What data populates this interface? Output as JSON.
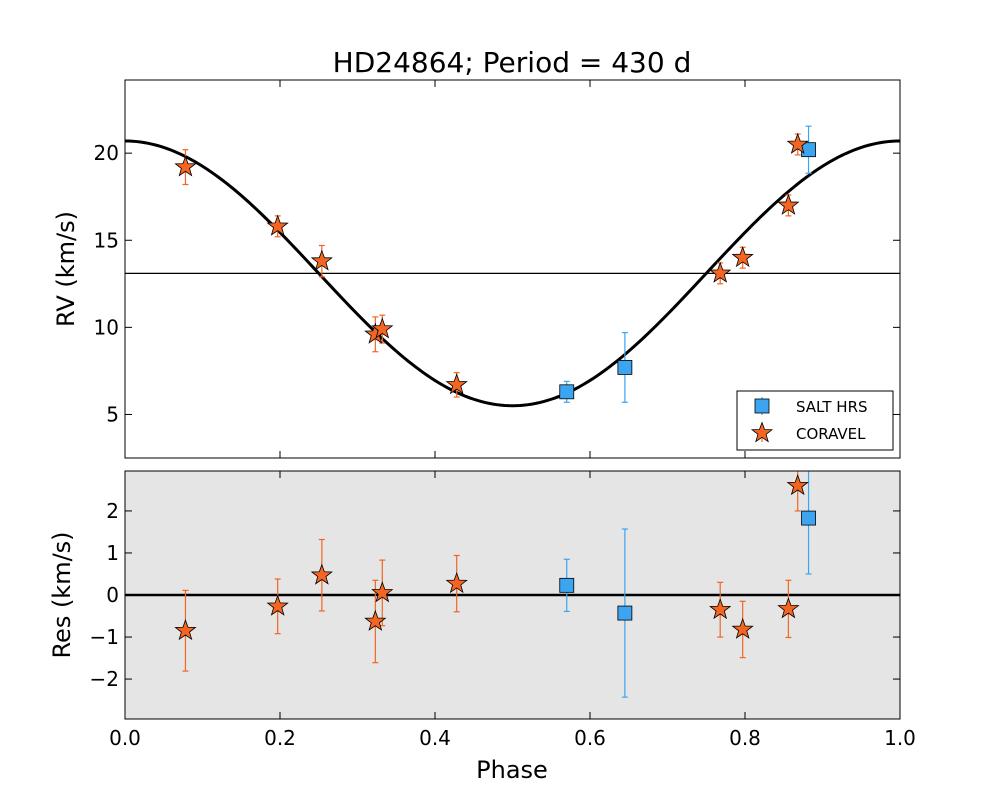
{
  "chart_data": {
    "type": "scatter",
    "title": "HD24864; Period = 430 d",
    "xlabel": "Phase",
    "xlim": [
      0.0,
      1.0
    ],
    "xticks": [
      "0.0",
      "0.2",
      "0.4",
      "0.6",
      "0.8",
      "1.0"
    ],
    "panels": [
      {
        "id": "rv",
        "ylabel": "RV (km/s)",
        "ylim": [
          2.5,
          24.2
        ],
        "yticks": [
          "5",
          "10",
          "15",
          "20"
        ],
        "model": {
          "name": "Keplerian fit",
          "mean": 13.1,
          "amplitude": 7.6,
          "phase_of_max": 0.0
        },
        "systemic_velocity": 13.1,
        "series": [
          {
            "name": "SALT HRS",
            "marker": "square",
            "color": "#3da5f0",
            "points": [
              {
                "x": 0.57,
                "y": 6.3,
                "err": 0.6
              },
              {
                "x": 0.645,
                "y": 7.7,
                "err": 2.0
              },
              {
                "x": 0.882,
                "y": 20.2,
                "err": 1.35
              }
            ]
          },
          {
            "name": "CORAVEL",
            "marker": "star",
            "color": "#f26522",
            "points": [
              {
                "x": 0.078,
                "y": 19.2,
                "err": 1.0
              },
              {
                "x": 0.197,
                "y": 15.8,
                "err": 0.6
              },
              {
                "x": 0.254,
                "y": 13.8,
                "err": 0.9
              },
              {
                "x": 0.323,
                "y": 9.6,
                "err": 1.0
              },
              {
                "x": 0.332,
                "y": 9.9,
                "err": 0.8
              },
              {
                "x": 0.428,
                "y": 6.7,
                "err": 0.7
              },
              {
                "x": 0.768,
                "y": 13.1,
                "err": 0.6
              },
              {
                "x": 0.797,
                "y": 14.0,
                "err": 0.6
              },
              {
                "x": 0.856,
                "y": 17.0,
                "err": 0.6
              },
              {
                "x": 0.868,
                "y": 20.5,
                "err": 0.6
              }
            ]
          }
        ],
        "legend": {
          "position": "lower-right",
          "entries": [
            "SALT HRS",
            "CORAVEL"
          ]
        }
      },
      {
        "id": "residuals",
        "ylabel": "Res (km/s)",
        "ylim": [
          -2.95,
          2.95
        ],
        "yticks": [
          "−2",
          "−1",
          "0",
          "1",
          "2"
        ],
        "zero_line": 0,
        "background": "#e5e5e5",
        "series": [
          {
            "name": "SALT HRS",
            "marker": "square",
            "color": "#3da5f0",
            "points": [
              {
                "x": 0.57,
                "y": 0.23,
                "err": 0.62
              },
              {
                "x": 0.645,
                "y": -0.43,
                "err": 2.0
              },
              {
                "x": 0.882,
                "y": 1.83,
                "err": 1.33
              }
            ]
          },
          {
            "name": "CORAVEL",
            "marker": "star",
            "color": "#f26522",
            "points": [
              {
                "x": 0.078,
                "y": -0.85,
                "err": 0.96
              },
              {
                "x": 0.197,
                "y": -0.27,
                "err": 0.65
              },
              {
                "x": 0.254,
                "y": 0.47,
                "err": 0.85
              },
              {
                "x": 0.323,
                "y": -0.63,
                "err": 0.98
              },
              {
                "x": 0.332,
                "y": 0.05,
                "err": 0.78
              },
              {
                "x": 0.428,
                "y": 0.27,
                "err": 0.67
              },
              {
                "x": 0.768,
                "y": -0.35,
                "err": 0.65
              },
              {
                "x": 0.797,
                "y": -0.82,
                "err": 0.67
              },
              {
                "x": 0.856,
                "y": -0.33,
                "err": 0.68
              },
              {
                "x": 0.868,
                "y": 2.6,
                "err": 0.6
              }
            ]
          }
        ]
      }
    ]
  }
}
